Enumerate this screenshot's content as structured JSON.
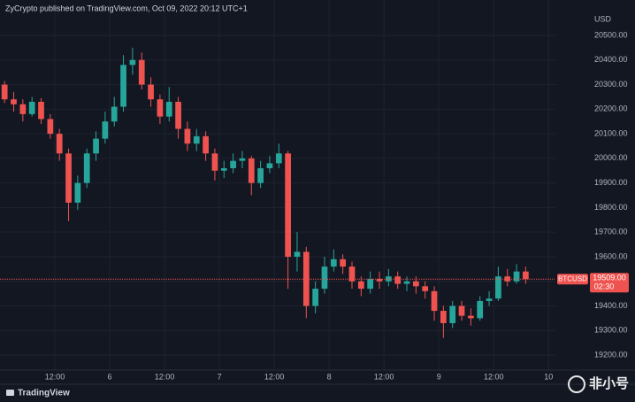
{
  "chart_data": {
    "type": "candlestick",
    "header": "ZyCrypto published on TradingView.com, Oct 09, 2022 20:12 UTC+1",
    "y_unit": "USD",
    "source_logo": "TradingView",
    "watermark": "非小号",
    "symbol": "BTCUSD",
    "last_price": {
      "value": 19509,
      "label": "19509.00"
    },
    "countdown": "02:30",
    "up_color": "#26a69a",
    "down_color": "#ef5350",
    "grid": true,
    "xlim": [
      0,
      121.5
    ],
    "ylim": [
      19139,
      20644
    ],
    "xticks": [
      {
        "value": 12,
        "label": "12:00"
      },
      {
        "value": 24,
        "label": "6"
      },
      {
        "value": 36,
        "label": "12:00"
      },
      {
        "value": 48,
        "label": "7"
      },
      {
        "value": 60,
        "label": "12:00"
      },
      {
        "value": 72,
        "label": "8"
      },
      {
        "value": 84,
        "label": "12:00"
      },
      {
        "value": 96,
        "label": "9"
      },
      {
        "value": 108,
        "label": "12:00"
      },
      {
        "value": 120,
        "label": "10"
      }
    ],
    "yticks": [
      {
        "value": 19200,
        "label": "19200.00"
      },
      {
        "value": 19300,
        "label": "19300.00"
      },
      {
        "value": 19400,
        "label": "19400.00"
      },
      {
        "value": 19500,
        "label": "19500.00"
      },
      {
        "value": 19600,
        "label": "19600.00"
      },
      {
        "value": 19700,
        "label": "19700.00"
      },
      {
        "value": 19800,
        "label": "19800.00"
      },
      {
        "value": 19900,
        "label": "19900.00"
      },
      {
        "value": 20000,
        "label": "20000.00"
      },
      {
        "value": 20100,
        "label": "20100.00"
      },
      {
        "value": 20200,
        "label": "20200.00"
      },
      {
        "value": 20300,
        "label": "20300.00"
      },
      {
        "value": 20400,
        "label": "20400.00"
      },
      {
        "value": 20500,
        "label": "20500.00"
      }
    ],
    "x": [
      1,
      3,
      5,
      7,
      9,
      11,
      13,
      15,
      17,
      19,
      21,
      23,
      25,
      27,
      29,
      31,
      33,
      35,
      37,
      39,
      41,
      43,
      45,
      47,
      49,
      51,
      53,
      55,
      57,
      59,
      61,
      63,
      65,
      67,
      69,
      71,
      73,
      75,
      77,
      79,
      81,
      83,
      85,
      87,
      89,
      91,
      93,
      95,
      97,
      99,
      101,
      103,
      105,
      107,
      109,
      111,
      113,
      115
    ],
    "open": [
      20300,
      20240,
      20220,
      20180,
      20230,
      20160,
      20100,
      20020,
      19820,
      19900,
      20020,
      20080,
      20150,
      20210,
      20380,
      20400,
      20300,
      20240,
      20170,
      20230,
      20120,
      20060,
      20090,
      20020,
      19950,
      19960,
      19990,
      20000,
      19900,
      19960,
      19980,
      20020,
      19600,
      19620,
      19400,
      19470,
      19560,
      19590,
      19560,
      19500,
      19470,
      19510,
      19500,
      19520,
      19490,
      19500,
      19480,
      19460,
      19380,
      19330,
      19400,
      19360,
      19350,
      19420,
      19430,
      19520,
      19500,
      19540
    ],
    "high": [
      20315,
      20270,
      20240,
      20250,
      20245,
      20180,
      20120,
      20040,
      19930,
      20040,
      20110,
      20190,
      20250,
      20420,
      20450,
      20430,
      20330,
      20260,
      20290,
      20250,
      20150,
      20120,
      20110,
      20040,
      19990,
      20020,
      20030,
      20010,
      19990,
      20010,
      20060,
      20030,
      19700,
      19640,
      19500,
      19600,
      19630,
      19610,
      19580,
      19520,
      19540,
      19540,
      19550,
      19540,
      19520,
      19520,
      19500,
      19480,
      19400,
      19420,
      19420,
      19390,
      19440,
      19460,
      19560,
      19550,
      19570,
      19560
    ],
    "low": [
      20225,
      20190,
      20150,
      20170,
      20140,
      20080,
      19990,
      19745,
      19790,
      19880,
      19990,
      20060,
      20130,
      20190,
      20340,
      20280,
      20210,
      20140,
      20150,
      20080,
      20030,
      20030,
      19990,
      19910,
      19920,
      19940,
      19960,
      19850,
      19880,
      19940,
      19960,
      19470,
      19540,
      19350,
      19370,
      19450,
      19540,
      19530,
      19470,
      19440,
      19450,
      19470,
      19480,
      19470,
      19460,
      19450,
      19430,
      19340,
      19270,
      19310,
      19340,
      19320,
      19340,
      19400,
      19420,
      19480,
      19490,
      19490
    ],
    "close": [
      20240,
      20220,
      20180,
      20230,
      20160,
      20100,
      20020,
      19820,
      19900,
      20020,
      20080,
      20150,
      20210,
      20380,
      20400,
      20300,
      20240,
      20170,
      20230,
      20120,
      20060,
      20090,
      20020,
      19950,
      19960,
      19990,
      20000,
      19900,
      19960,
      19980,
      20020,
      19600,
      19620,
      19400,
      19470,
      19560,
      19590,
      19560,
      19500,
      19470,
      19510,
      19500,
      19520,
      19490,
      19500,
      19480,
      19460,
      19380,
      19330,
      19400,
      19360,
      19350,
      19420,
      19430,
      19520,
      19500,
      19540,
      19509
    ]
  }
}
